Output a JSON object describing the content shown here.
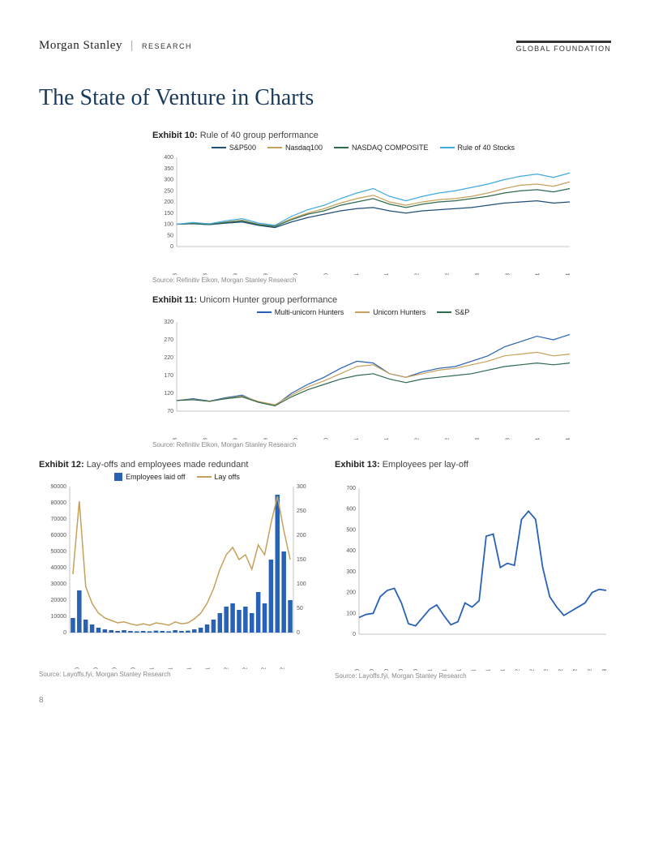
{
  "header": {
    "brand": "Morgan Stanley",
    "research": "RESEARCH",
    "foundation": "GLOBAL FOUNDATION"
  },
  "title": "The State of Venture in Charts",
  "pagenum": "8",
  "ex10": {
    "num": "Exhibit 10:",
    "desc": "Rule of 40 group performance",
    "source": "Source: Refinitiv Eikon, Morgan Stanley Research",
    "legend": [
      {
        "label": "S&P500",
        "color": "#1f4e79"
      },
      {
        "label": "Nasdaq100",
        "color": "#c5a05a"
      },
      {
        "label": "NASDAQ COMPOSITE",
        "color": "#2e6b4e"
      },
      {
        "label": "Rule of 40 Stocks",
        "color": "#3fa9e0"
      }
    ],
    "ymin": 0,
    "ymax": 400,
    "ystep": 50,
    "xlabels": [
      "Jan 18",
      "Jul 18",
      "Jan 19",
      "Jul 19",
      "Jan 20",
      "Jul 20",
      "Jan 21",
      "Jul 21",
      "Jan 22",
      "Jul 22",
      "Jan 23",
      "Jul 23",
      "Jan 24",
      "Jul 24"
    ],
    "series": {
      "sp500": [
        100,
        102,
        98,
        105,
        110,
        95,
        85,
        110,
        130,
        145,
        160,
        170,
        175,
        160,
        150,
        160,
        165,
        170,
        175,
        185,
        195,
        200,
        205,
        195,
        200
      ],
      "nasdaq100": [
        100,
        105,
        100,
        110,
        118,
        100,
        92,
        125,
        150,
        170,
        195,
        215,
        230,
        200,
        185,
        200,
        210,
        215,
        225,
        240,
        260,
        275,
        280,
        270,
        290
      ],
      "nasdaqcomp": [
        100,
        103,
        99,
        108,
        115,
        98,
        90,
        120,
        145,
        160,
        185,
        200,
        215,
        190,
        175,
        190,
        200,
        205,
        215,
        225,
        240,
        250,
        255,
        245,
        260
      ],
      "rule40": [
        100,
        108,
        102,
        115,
        125,
        105,
        95,
        135,
        165,
        185,
        215,
        240,
        260,
        225,
        205,
        225,
        240,
        250,
        265,
        280,
        300,
        315,
        325,
        310,
        330
      ]
    }
  },
  "ex11": {
    "num": "Exhibit 11:",
    "desc": "Unicorn Hunter group performance",
    "source": "Source: Refinitiv Eikon, Morgan Stanley Research",
    "legend": [
      {
        "label": "Multi-unicorn Hunters",
        "color": "#2962b5"
      },
      {
        "label": "Unicorn Hunters",
        "color": "#c5a05a"
      },
      {
        "label": "S&P",
        "color": "#2e6b4e"
      }
    ],
    "ymin": 70,
    "ymax": 320,
    "ystep": 50,
    "xlabels": [
      "Jan 18",
      "Jul 18",
      "Jan 19",
      "Jul 19",
      "Jan 20",
      "Jul 20",
      "Jan 21",
      "Jul 21",
      "Jan 22",
      "Jul 22",
      "Jan 23",
      "Jul 23",
      "Jan 24",
      "Jul 24"
    ],
    "series": {
      "multi": [
        100,
        105,
        98,
        108,
        115,
        95,
        85,
        120,
        145,
        165,
        190,
        210,
        205,
        175,
        165,
        180,
        190,
        195,
        210,
        225,
        250,
        265,
        280,
        270,
        285
      ],
      "unicorn": [
        100,
        103,
        97,
        106,
        112,
        97,
        88,
        115,
        138,
        155,
        175,
        195,
        200,
        175,
        165,
        175,
        185,
        190,
        200,
        210,
        225,
        230,
        235,
        225,
        230
      ],
      "sp": [
        100,
        102,
        98,
        105,
        110,
        95,
        85,
        110,
        130,
        145,
        160,
        170,
        175,
        160,
        150,
        160,
        165,
        170,
        175,
        185,
        195,
        200,
        205,
        200,
        205
      ]
    }
  },
  "ex12": {
    "num": "Exhibit 12:",
    "desc": "Lay-offs and employees made redundant",
    "source": "Source: Layoffs.fyi, Morgan Stanley Research",
    "legend": [
      {
        "label": "Employees laid off",
        "color": "#2962b5",
        "type": "bar"
      },
      {
        "label": "Lay offs",
        "color": "#c5a05a",
        "type": "line"
      }
    ],
    "yLmax": 90000,
    "yLstep": 10000,
    "yRmax": 300,
    "yRstep": 50,
    "xlabels": [
      "Mar-20",
      "Jun-20",
      "Sep-20",
      "Dec-20",
      "Mar-21",
      "Jun-21",
      "Sep-21",
      "Dec-21",
      "Mar-22",
      "Jun-22",
      "Sep-22",
      "Dec-22"
    ],
    "bars": [
      9000,
      26000,
      8000,
      5000,
      3000,
      2000,
      1500,
      1000,
      1500,
      1000,
      800,
      1000,
      800,
      1200,
      1000,
      800,
      1500,
      1000,
      1200,
      2000,
      3000,
      5000,
      8000,
      12000,
      16000,
      18000,
      14000,
      16000,
      12000,
      25000,
      18000,
      45000,
      85000,
      50000,
      20000
    ],
    "layoffs": [
      120,
      270,
      95,
      60,
      40,
      30,
      25,
      20,
      22,
      18,
      15,
      18,
      15,
      20,
      18,
      15,
      22,
      18,
      20,
      28,
      40,
      60,
      90,
      130,
      160,
      175,
      150,
      160,
      130,
      180,
      160,
      225,
      280,
      210,
      150
    ]
  },
  "ex13": {
    "num": "Exhibit 13:",
    "desc": "Employees per lay-off",
    "source": "Source: Layoffs.fyi, Morgan Stanley Research",
    "ymax": 700,
    "ystep": 100,
    "xlabels": [
      "Mar-20",
      "May-20",
      "Jul-20",
      "Sep-20",
      "Nov-20",
      "Jan-21",
      "Mar-21",
      "May-21",
      "Jul-21",
      "Sep-21",
      "Nov-21",
      "Jan-22",
      "Mar-22",
      "May-22",
      "Jul-22",
      "Sep-22",
      "Nov-22",
      "Jan-23"
    ],
    "data": [
      80,
      95,
      100,
      180,
      210,
      220,
      150,
      50,
      40,
      80,
      120,
      140,
      90,
      45,
      60,
      150,
      130,
      160,
      470,
      480,
      320,
      340,
      330,
      550,
      590,
      550,
      320,
      180,
      130,
      90,
      110,
      130,
      150,
      200,
      215,
      210
    ]
  },
  "colors": {
    "axis": "#888888",
    "grid": "#dddddd"
  }
}
